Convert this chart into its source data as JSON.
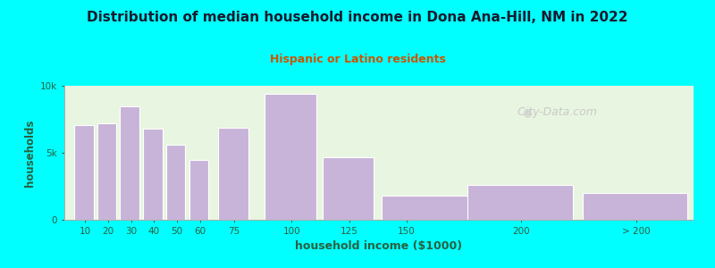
{
  "title": "Distribution of median household income in Dona Ana-Hill, NM in 2022",
  "subtitle": "Hispanic or Latino residents",
  "xlabel": "household income ($1000)",
  "ylabel": "households",
  "background_outer": "#00ffff",
  "background_inner_top": "#e8f5e0",
  "background_inner_bottom": "#f5faf5",
  "bar_color": "#c8b4d8",
  "bar_edge_color": "#ffffff",
  "title_color": "#1a1a2e",
  "subtitle_color": "#cc5500",
  "axis_label_color": "#2a6040",
  "tick_label_color": "#2a6040",
  "categories": [
    "10",
    "20",
    "30",
    "40",
    "50",
    "60",
    "75",
    "100",
    "125",
    "150",
    "200",
    "> 200"
  ],
  "values": [
    7100,
    7200,
    8500,
    6800,
    5600,
    4500,
    6900,
    9400,
    4700,
    1800,
    2600,
    2000
  ],
  "ylim": [
    0,
    10000
  ],
  "ytick_labels": [
    "0",
    "5k",
    "10k"
  ],
  "bar_lefts": [
    5,
    15,
    25,
    35,
    45,
    55,
    67.5,
    87.5,
    112.5,
    137.5,
    175,
    225
  ],
  "bar_widths": [
    9,
    9,
    9,
    9,
    9,
    9,
    14,
    24,
    24,
    49,
    49,
    49
  ],
  "xtick_positions": [
    10,
    20,
    30,
    40,
    50,
    60,
    75,
    100,
    125,
    150,
    200,
    250
  ],
  "watermark_text": " City-Data.com",
  "watermark_color": "#bbbbbb",
  "xlim_left": 1,
  "xlim_right": 275
}
